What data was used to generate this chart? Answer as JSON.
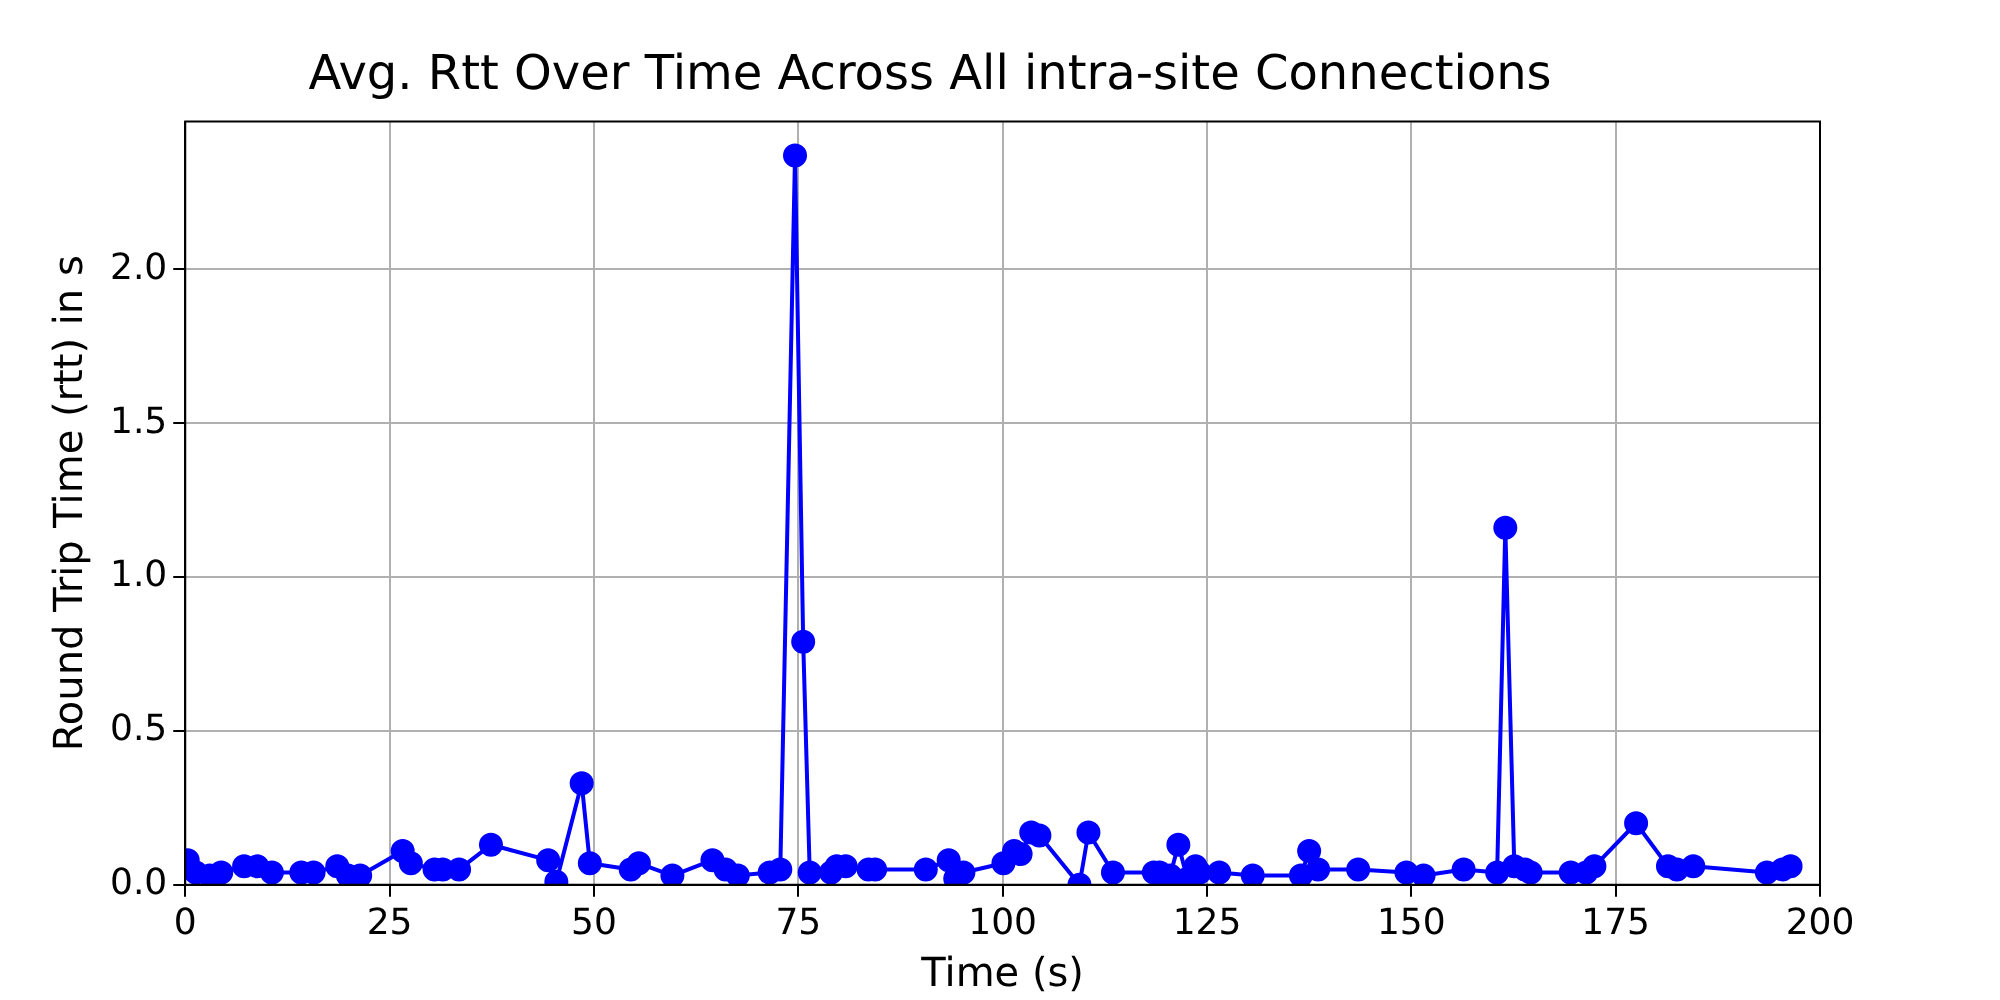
{
  "chart_data": {
    "type": "line",
    "title": "Avg. Rtt Over Time Across All intra-site Connections",
    "xlabel": "Time (s)",
    "ylabel": "Round Trip Time (rtt) in s",
    "x": [
      0.3,
      1.3,
      3,
      4.4,
      7.2,
      8.8,
      10.6,
      14.2,
      15.7,
      18.6,
      19.9,
      21.4,
      26.6,
      27.6,
      30.5,
      31.5,
      33.5,
      37.4,
      44.4,
      45.4,
      48.5,
      49.5,
      54.5,
      55.5,
      59.6,
      64.5,
      66.1,
      67.6,
      71.5,
      72.8,
      74.6,
      75.6,
      76.4,
      79.0,
      79.7,
      80.8,
      83.6,
      84.4,
      90.6,
      93.4,
      94.2,
      95.2,
      100.1,
      101.4,
      102.2,
      103.5,
      104.5,
      109.4,
      110.5,
      113.5,
      118.5,
      119.2,
      120.5,
      121.5,
      122.6,
      123.6,
      124.1,
      126.5,
      130.6,
      136.5,
      137.5,
      138.6,
      143.5,
      149.4,
      151.5,
      156.4,
      160.5,
      161.5,
      162.6,
      163.9,
      164.6,
      169.5,
      171.4,
      172.4,
      177.5,
      181.4,
      182.5,
      184.5,
      193.5,
      195.4,
      196.4
    ],
    "series": [
      {
        "color": "#0000ff",
        "values": [
          0.08,
          0.04,
          0.03,
          0.04,
          0.06,
          0.06,
          0.04,
          0.04,
          0.04,
          0.06,
          0.03,
          0.03,
          0.11,
          0.07,
          0.05,
          0.05,
          0.05,
          0.13,
          0.08,
          0.01,
          0.33,
          0.07,
          0.05,
          0.07,
          0.03,
          0.08,
          0.05,
          0.03,
          0.04,
          0.05,
          2.37,
          0.79,
          0.04,
          0.04,
          0.06,
          0.06,
          0.05,
          0.05,
          0.05,
          0.08,
          0.02,
          0.04,
          0.07,
          0.11,
          0.1,
          0.17,
          0.16,
          0.0,
          0.17,
          0.04,
          0.04,
          0.04,
          0.03,
          0.13,
          0.02,
          0.06,
          0.04,
          0.04,
          0.03,
          0.03,
          0.11,
          0.05,
          0.05,
          0.04,
          0.03,
          0.05,
          0.04,
          1.16,
          0.06,
          0.05,
          0.04,
          0.04,
          0.04,
          0.06,
          0.2,
          0.06,
          0.05,
          0.06,
          0.04,
          0.05,
          0.06
        ]
      }
    ],
    "xlim": [
      0,
      200
    ],
    "xticks": [
      0,
      25,
      50,
      75,
      100,
      125,
      150,
      175,
      200
    ],
    "ylim": [
      0,
      2.48
    ],
    "yticks": [
      {
        "value": 0,
        "label": "0.0"
      },
      {
        "value": 0.5,
        "label": "0.5"
      },
      {
        "value": 1,
        "label": "1.0"
      },
      {
        "value": 1.5,
        "label": "1.5"
      },
      {
        "value": 2,
        "label": "2.0"
      }
    ],
    "grid": true,
    "legend": false,
    "marker": "circle",
    "line_style": "solid"
  }
}
